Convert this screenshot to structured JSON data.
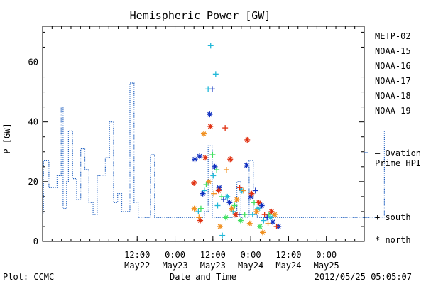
{
  "chart_data": {
    "type": "line",
    "title": "Hemispheric Power [GW]",
    "xlabel": "Date and Time",
    "ylabel": "P [GW]",
    "ylim": [
      0,
      72
    ],
    "xlim": [
      "2012-05-21 06:00",
      "2012-05-25 12:00"
    ],
    "yticks": [
      0,
      20,
      40,
      60
    ],
    "xticks": [
      {
        "at": "2012-05-22 12:00",
        "top": "12:00",
        "bottom": "May22"
      },
      {
        "at": "2012-05-23 00:00",
        "top": "0:00",
        "bottom": "May23"
      },
      {
        "at": "2012-05-23 12:00",
        "top": "12:00",
        "bottom": "May23"
      },
      {
        "at": "2012-05-24 00:00",
        "top": "0:00",
        "bottom": "May24"
      },
      {
        "at": "2012-05-24 12:00",
        "top": "12:00",
        "bottom": "May24"
      },
      {
        "at": "2012-05-25 00:00",
        "top": "0:00",
        "bottom": "May25"
      }
    ],
    "footer_left": "Plot: CCMC",
    "footer_right": "2012/05/25 05:05:07",
    "ovation": {
      "legend_line1": "— Ovation",
      "legend_line2": "Prime HPI",
      "color": "#2060c0",
      "hours": [
        0,
        0.3,
        2,
        3.3,
        4.6,
        5.9,
        6.5,
        7.6,
        8.2,
        9.5,
        10.8,
        12.1,
        13.4,
        14.7,
        16.0,
        17.3,
        18.6,
        19.9,
        21.2,
        22.5,
        23.8,
        25.1,
        26.4,
        27.7,
        29.0,
        30.3,
        31.6,
        32.9,
        34.2,
        35.5,
        38.0,
        40.6,
        43.2,
        45.8,
        48.4,
        49.2,
        50.4,
        51.3,
        52.5,
        53.8,
        55.1,
        56.4,
        57.7,
        59.0,
        60.3,
        61.6,
        62.9,
        64.2,
        65.5,
        66.8,
        68.1,
        69.4,
        70.7,
        72.0,
        73.3,
        74.6,
        75.9,
        77.2,
        78.5,
        79.8,
        81.1,
        82.4,
        83.7,
        85.0,
        86.3,
        87.6,
        88.9,
        90.2,
        91.5,
        92.8,
        94.1,
        95.4,
        96.7,
        98.0,
        99.3,
        100.6,
        101.9,
        103.2,
        104.5,
        105.8,
        107.1,
        108.4,
        108.5
      ],
      "values": [
        9.5,
        27,
        18,
        18,
        22,
        45,
        11,
        20,
        37,
        21,
        14,
        31,
        24,
        13,
        9,
        22,
        22,
        28,
        40,
        13,
        16,
        10,
        10,
        53,
        13,
        8,
        8,
        8,
        29,
        8,
        8,
        8,
        8,
        8,
        8,
        8,
        8,
        10,
        32,
        8,
        8,
        8,
        8,
        8,
        8,
        20,
        8,
        8,
        27,
        9,
        8,
        8,
        8,
        8,
        8,
        8,
        8,
        8,
        8,
        8,
        8,
        8,
        8,
        8,
        8,
        8,
        8,
        8,
        8,
        8,
        8,
        8,
        8,
        8,
        8,
        8,
        8,
        8,
        8,
        8,
        8,
        37,
        37
      ]
    },
    "symbols": {
      "south": "+",
      "north": "*"
    },
    "series": [
      {
        "name": "METP-02",
        "color": "#000000",
        "points": []
      },
      {
        "name": "NOAA-15",
        "color": "#1030c0",
        "points": [
          {
            "x": 48.3,
            "y": 27.5,
            "s": "*"
          },
          {
            "x": 49.8,
            "y": 28.5,
            "s": "*"
          },
          {
            "x": 53.8,
            "y": 51,
            "s": "+"
          },
          {
            "x": 53.0,
            "y": 42.5,
            "s": "*"
          },
          {
            "x": 54.6,
            "y": 25,
            "s": "*"
          },
          {
            "x": 56.0,
            "y": 18,
            "s": "*"
          },
          {
            "x": 57.4,
            "y": 14,
            "s": "+"
          },
          {
            "x": 59.3,
            "y": 13,
            "s": "*"
          },
          {
            "x": 64.7,
            "y": 25.5,
            "s": "*"
          },
          {
            "x": 66.0,
            "y": 15,
            "s": "*"
          },
          {
            "x": 67.5,
            "y": 17,
            "s": "+"
          },
          {
            "x": 69.5,
            "y": 12,
            "s": "*"
          },
          {
            "x": 71.2,
            "y": 8,
            "s": "+"
          },
          {
            "x": 73.0,
            "y": 6.5,
            "s": "*"
          },
          {
            "x": 74.8,
            "y": 5,
            "s": "*"
          },
          {
            "x": 50.8,
            "y": 16,
            "s": "*"
          },
          {
            "x": 62.3,
            "y": 9,
            "s": "+"
          }
        ]
      },
      {
        "name": "NOAA-16",
        "color": "#20b8d8",
        "points": [
          {
            "x": 52.5,
            "y": 51,
            "s": "+"
          },
          {
            "x": 53.3,
            "y": 65.5,
            "s": "+"
          },
          {
            "x": 54.9,
            "y": 56,
            "s": "+"
          },
          {
            "x": 49.4,
            "y": 10,
            "s": "+"
          },
          {
            "x": 51.3,
            "y": 17,
            "s": "+"
          },
          {
            "x": 54.1,
            "y": 22,
            "s": "+"
          },
          {
            "x": 55.5,
            "y": 12,
            "s": "+"
          },
          {
            "x": 57.0,
            "y": 2,
            "s": "+"
          },
          {
            "x": 58.6,
            "y": 15,
            "s": "*"
          },
          {
            "x": 60.4,
            "y": 10,
            "s": "+"
          },
          {
            "x": 63.2,
            "y": 17,
            "s": "*"
          },
          {
            "x": 66.6,
            "y": 9,
            "s": "+"
          },
          {
            "x": 68.3,
            "y": 11,
            "s": "*"
          },
          {
            "x": 70.1,
            "y": 7,
            "s": "+"
          },
          {
            "x": 72.3,
            "y": 8,
            "s": "*"
          }
        ]
      },
      {
        "name": "NOAA-17",
        "color": "#40e060",
        "points": [
          {
            "x": 53.9,
            "y": 29,
            "s": "+"
          },
          {
            "x": 51.9,
            "y": 19,
            "s": "+"
          },
          {
            "x": 55.2,
            "y": 24,
            "s": "+"
          },
          {
            "x": 50.2,
            "y": 11,
            "s": "+"
          },
          {
            "x": 56.8,
            "y": 15,
            "s": "+"
          },
          {
            "x": 58.1,
            "y": 8,
            "s": "*"
          },
          {
            "x": 60.9,
            "y": 12,
            "s": "+"
          },
          {
            "x": 62.8,
            "y": 7,
            "s": "*"
          },
          {
            "x": 64.1,
            "y": 9,
            "s": "+"
          },
          {
            "x": 67.1,
            "y": 13,
            "s": "+"
          },
          {
            "x": 68.9,
            "y": 5,
            "s": "*"
          },
          {
            "x": 71.8,
            "y": 9,
            "s": "+"
          }
        ]
      },
      {
        "name": "NOAA-18",
        "color": "#f09020",
        "points": [
          {
            "x": 51.1,
            "y": 36,
            "s": "*"
          },
          {
            "x": 48.1,
            "y": 11,
            "s": "*"
          },
          {
            "x": 49.6,
            "y": 8,
            "s": "+"
          },
          {
            "x": 52.7,
            "y": 20,
            "s": "*"
          },
          {
            "x": 54.3,
            "y": 16,
            "s": "+"
          },
          {
            "x": 56.3,
            "y": 5,
            "s": "*"
          },
          {
            "x": 58.3,
            "y": 24,
            "s": "+"
          },
          {
            "x": 60.0,
            "y": 11,
            "s": "*"
          },
          {
            "x": 61.6,
            "y": 14,
            "s": "*"
          },
          {
            "x": 63.7,
            "y": 17,
            "s": "+"
          },
          {
            "x": 65.7,
            "y": 6,
            "s": "*"
          },
          {
            "x": 67.9,
            "y": 10,
            "s": "*"
          },
          {
            "x": 69.8,
            "y": 3,
            "s": "*"
          },
          {
            "x": 71.5,
            "y": 6,
            "s": "+"
          },
          {
            "x": 73.6,
            "y": 9,
            "s": "*"
          }
        ]
      },
      {
        "name": "NOAA-19",
        "color": "#e03010",
        "points": [
          {
            "x": 48.0,
            "y": 19.5,
            "s": "*"
          },
          {
            "x": 51.6,
            "y": 28,
            "s": "*"
          },
          {
            "x": 53.2,
            "y": 38.5,
            "s": "*"
          },
          {
            "x": 50.0,
            "y": 7,
            "s": "*"
          },
          {
            "x": 55.8,
            "y": 17,
            "s": "*"
          },
          {
            "x": 57.9,
            "y": 38,
            "s": "+"
          },
          {
            "x": 59.5,
            "y": 27.5,
            "s": "*"
          },
          {
            "x": 61.2,
            "y": 9,
            "s": "*"
          },
          {
            "x": 64.9,
            "y": 34,
            "s": "*"
          },
          {
            "x": 66.3,
            "y": 16,
            "s": "*"
          },
          {
            "x": 68.6,
            "y": 13,
            "s": "*"
          },
          {
            "x": 70.4,
            "y": 9,
            "s": "+"
          },
          {
            "x": 72.6,
            "y": 10,
            "s": "*"
          },
          {
            "x": 74.2,
            "y": 5,
            "s": "+"
          },
          {
            "x": 62.5,
            "y": 18,
            "s": "+"
          }
        ]
      }
    ]
  }
}
